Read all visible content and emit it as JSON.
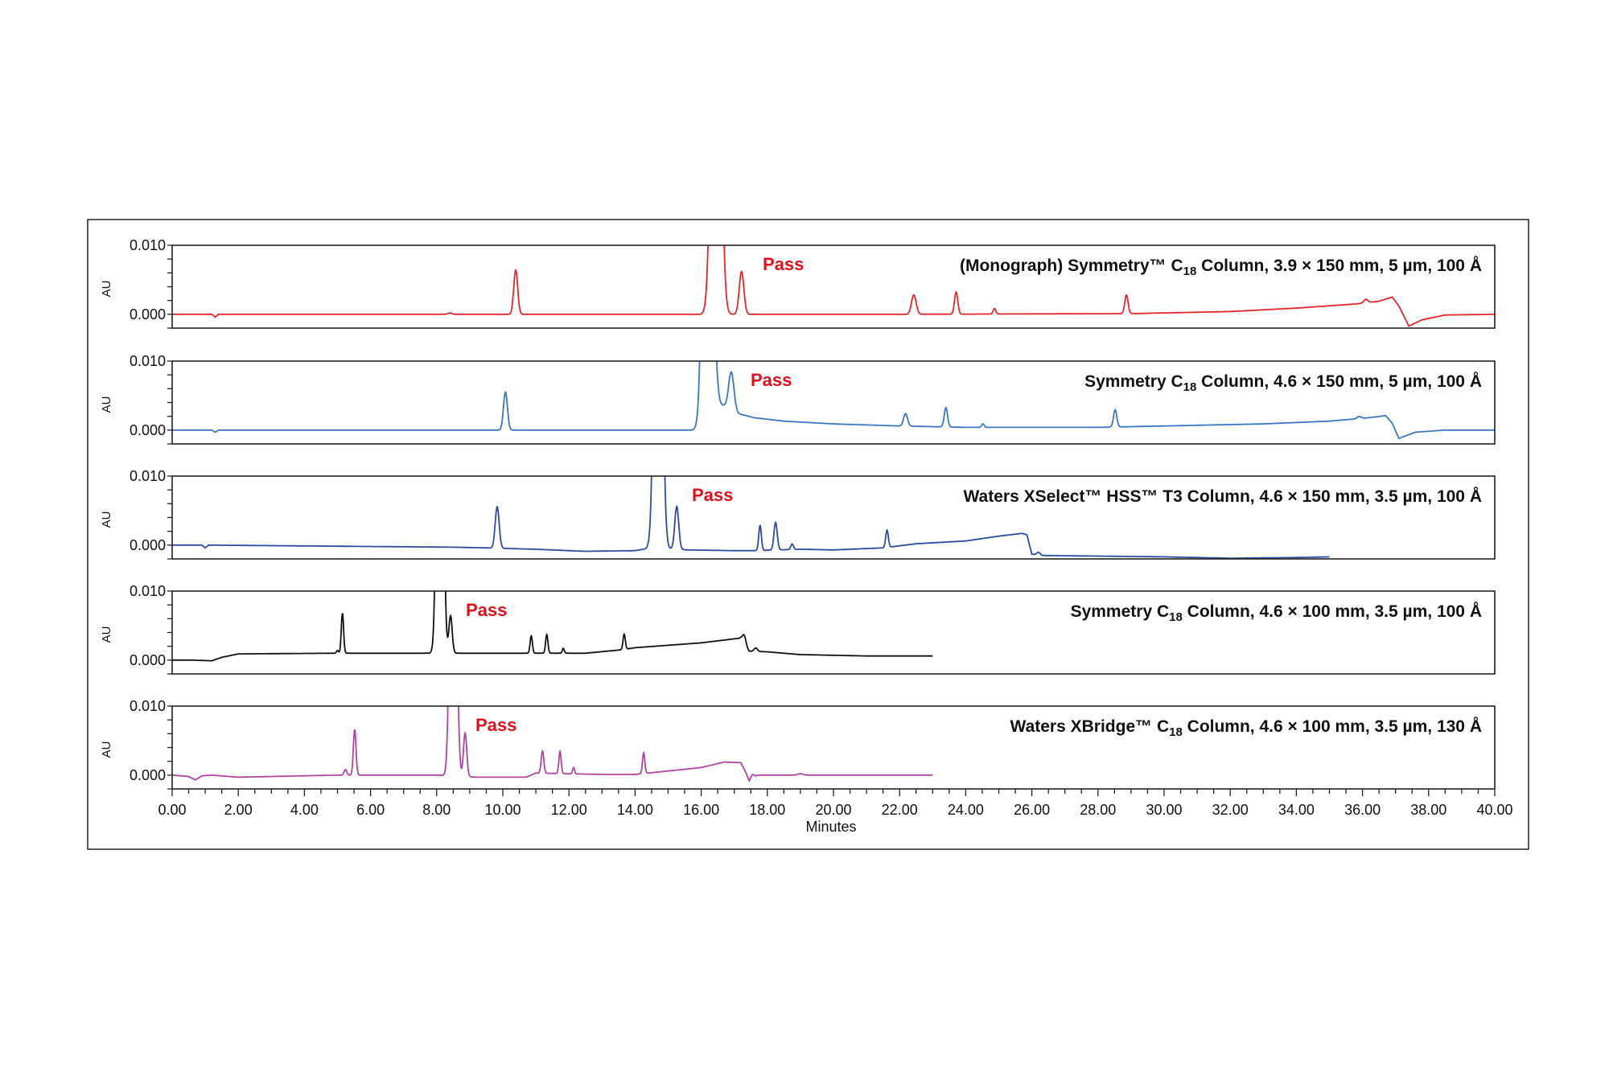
{
  "chart_data": {
    "type": "line",
    "xlabel": "Minutes",
    "ylabel": "AU",
    "xlim": [
      0,
      40
    ],
    "x_ticks": [
      "0.00",
      "2.00",
      "4.00",
      "6.00",
      "8.00",
      "10.00",
      "12.00",
      "14.00",
      "16.00",
      "18.00",
      "20.00",
      "22.00",
      "24.00",
      "26.00",
      "28.00",
      "30.00",
      "32.00",
      "34.00",
      "36.00",
      "38.00",
      "40.00"
    ],
    "ylim": [
      -0.002,
      0.01
    ],
    "y_ticks": [
      "0.010",
      "0.000"
    ],
    "grid": false,
    "panels": [
      {
        "label": {
          "before": "(Monograph) Symmetry™ C",
          "sub": "18",
          "after": " Column, 3.9 × 150 mm, 5 µm, 100 Å"
        },
        "annotation": "Pass",
        "color": "#e3262b",
        "x_end": 40,
        "baseline": [
          [
            0,
            0
          ],
          [
            1.2,
            0
          ],
          [
            1.3,
            -0.0004
          ],
          [
            1.4,
            0
          ],
          [
            22,
            0
          ],
          [
            29,
            0.0001
          ],
          [
            32,
            0.0004
          ],
          [
            34,
            0.0009
          ],
          [
            35.8,
            0.0015
          ],
          [
            36.5,
            0.0019
          ],
          [
            36.9,
            0.0025
          ],
          [
            37.1,
            0.0012
          ],
          [
            37.4,
            -0.0017
          ],
          [
            37.8,
            -0.0008
          ],
          [
            38.5,
            -0.0001
          ],
          [
            40,
            0
          ]
        ],
        "peaks": [
          [
            8.4,
            0.0002,
            0.06
          ],
          [
            10.39,
            0.0064,
            0.06
          ],
          [
            16.45,
            0.08,
            0.12
          ],
          [
            17.22,
            0.0062,
            0.07
          ],
          [
            22.43,
            0.0028,
            0.07
          ],
          [
            23.71,
            0.0032,
            0.05
          ],
          [
            24.87,
            0.0008,
            0.04
          ],
          [
            28.86,
            0.0027,
            0.05
          ],
          [
            36.1,
            0.0005,
            0.06
          ]
        ]
      },
      {
        "label": {
          "before": "Symmetry C",
          "sub": "18",
          "after": " Column, 4.6 × 150 mm, 5 µm, 100 Å"
        },
        "annotation": "Pass",
        "color": "#3b76c2",
        "x_end": 40,
        "baseline": [
          [
            0,
            0
          ],
          [
            1.2,
            0
          ],
          [
            1.3,
            -0.0003
          ],
          [
            1.4,
            0
          ],
          [
            15.9,
            0
          ],
          [
            16.3,
            0.004
          ],
          [
            16.7,
            0.0035
          ],
          [
            17.1,
            0.0024
          ],
          [
            17.6,
            0.0018
          ],
          [
            18.5,
            0.0013
          ],
          [
            20,
            0.0009
          ],
          [
            22,
            0.0006
          ],
          [
            24,
            0.0004
          ],
          [
            28,
            0.0004
          ],
          [
            30,
            0.0006
          ],
          [
            33,
            0.0009
          ],
          [
            35,
            0.0013
          ],
          [
            36.2,
            0.0018
          ],
          [
            36.7,
            0.0021
          ],
          [
            36.9,
            0.001
          ],
          [
            37.1,
            -0.0012
          ],
          [
            37.6,
            -0.0003
          ],
          [
            38.5,
            0
          ],
          [
            40,
            0
          ]
        ],
        "peaks": [
          [
            10.08,
            0.0055,
            0.06
          ],
          [
            16.2,
            0.08,
            0.12
          ],
          [
            16.91,
            0.0055,
            0.08
          ],
          [
            22.18,
            0.0018,
            0.06
          ],
          [
            23.4,
            0.0028,
            0.05
          ],
          [
            24.52,
            0.0005,
            0.04
          ],
          [
            28.52,
            0.0025,
            0.05
          ],
          [
            35.9,
            0.0003,
            0.06
          ]
        ]
      },
      {
        "label": {
          "before": "Waters XSelect™ HSS™ T3 Column, 4.6 × 150 mm, 3.5 µm, 100 Å",
          "sub": "",
          "after": ""
        },
        "annotation": "Pass",
        "color": "#2d4b9e",
        "x_end": 35,
        "baseline": [
          [
            0,
            0
          ],
          [
            0.9,
            0
          ],
          [
            1.0,
            -0.0004
          ],
          [
            1.1,
            0
          ],
          [
            8.5,
            -0.0003
          ],
          [
            9.5,
            -0.0004
          ],
          [
            11,
            -0.0006
          ],
          [
            12.5,
            -0.0009
          ],
          [
            14,
            -0.0008
          ],
          [
            14.5,
            -0.0004
          ],
          [
            15.6,
            -0.0007
          ],
          [
            17,
            -0.0008
          ],
          [
            17.6,
            -0.0008
          ],
          [
            19,
            -0.0006
          ],
          [
            20,
            -0.0007
          ],
          [
            21.5,
            -0.0004
          ],
          [
            22.5,
            0.0002
          ],
          [
            24,
            0.0006
          ],
          [
            25,
            0.0013
          ],
          [
            25.7,
            0.0017
          ],
          [
            25.85,
            0.0015
          ],
          [
            26.0,
            -0.0013
          ],
          [
            26.3,
            -0.0015
          ],
          [
            30,
            -0.0017
          ],
          [
            32,
            -0.0019
          ],
          [
            34,
            -0.0018
          ],
          [
            35,
            -0.0017
          ]
        ],
        "peaks": [
          [
            9.83,
            0.006,
            0.06
          ],
          [
            14.7,
            0.08,
            0.1
          ],
          [
            15.26,
            0.0062,
            0.06
          ],
          [
            17.78,
            0.0036,
            0.04
          ],
          [
            18.25,
            0.004,
            0.05
          ],
          [
            18.75,
            0.0008,
            0.04
          ],
          [
            21.62,
            0.0025,
            0.04
          ],
          [
            26.2,
            0.0004,
            0.05
          ]
        ]
      },
      {
        "label": {
          "before": "Symmetry C",
          "sub": "18",
          "after": " Column, 4.6 × 100 mm, 3.5 µm, 100 Å"
        },
        "annotation": "Pass",
        "color": "#111111",
        "x_end": 23,
        "baseline": [
          [
            0,
            0
          ],
          [
            0.6,
            0
          ],
          [
            1.2,
            -0.0001
          ],
          [
            1.5,
            0.0004
          ],
          [
            2,
            0.0009
          ],
          [
            5,
            0.001
          ],
          [
            8,
            0.001
          ],
          [
            12.5,
            0.001
          ],
          [
            13.6,
            0.0015
          ],
          [
            14,
            0.0018
          ],
          [
            16,
            0.0025
          ],
          [
            17.2,
            0.0032
          ],
          [
            17.45,
            0.0013
          ],
          [
            18,
            0.0012
          ],
          [
            19,
            0.0008
          ],
          [
            21,
            0.0006
          ],
          [
            23,
            0.0006
          ]
        ],
        "peaks": [
          [
            5.0,
            0.0004,
            0.03
          ],
          [
            5.15,
            0.0058,
            0.035
          ],
          [
            8.1,
            0.08,
            0.08
          ],
          [
            8.42,
            0.0054,
            0.05
          ],
          [
            10.86,
            0.0025,
            0.035
          ],
          [
            11.33,
            0.0027,
            0.035
          ],
          [
            11.83,
            0.0007,
            0.03
          ],
          [
            13.67,
            0.0022,
            0.035
          ],
          [
            17.3,
            0.0012,
            0.05
          ],
          [
            17.65,
            0.0005,
            0.05
          ]
        ]
      },
      {
        "label": {
          "before": "Waters XBridge™ C",
          "sub": "18",
          "after": " Column, 4.6 × 100 mm, 3.5 µm, 130 Å"
        },
        "annotation": "Pass",
        "color": "#b0449e",
        "x_end": 23,
        "baseline": [
          [
            0,
            0
          ],
          [
            0.5,
            -0.0002
          ],
          [
            0.7,
            -0.0007
          ],
          [
            0.9,
            -0.0001
          ],
          [
            1.2,
            0
          ],
          [
            2,
            -0.0003
          ],
          [
            3,
            -0.0002
          ],
          [
            5,
            0
          ],
          [
            8,
            0
          ],
          [
            9.2,
            -0.0003
          ],
          [
            10.7,
            -0.0003
          ],
          [
            11,
            0.0003
          ],
          [
            13,
            0.0001
          ],
          [
            14,
            0.0001
          ],
          [
            15,
            0.0006
          ],
          [
            16,
            0.0011
          ],
          [
            16.7,
            0.0019
          ],
          [
            17.2,
            0.0018
          ],
          [
            17.35,
            0.0004
          ],
          [
            17.45,
            -0.0009
          ],
          [
            17.7,
            0
          ],
          [
            23,
            0
          ]
        ],
        "peaks": [
          [
            5.24,
            0.0008,
            0.04
          ],
          [
            5.52,
            0.0066,
            0.04
          ],
          [
            8.5,
            0.08,
            0.08
          ],
          [
            8.86,
            0.0063,
            0.05
          ],
          [
            11.2,
            0.0032,
            0.04
          ],
          [
            11.73,
            0.0032,
            0.035
          ],
          [
            12.14,
            0.0009,
            0.03
          ],
          [
            14.26,
            0.003,
            0.035
          ],
          [
            17.55,
            0.0006,
            0.05
          ],
          [
            19.0,
            0.0002,
            0.08
          ]
        ]
      }
    ]
  }
}
